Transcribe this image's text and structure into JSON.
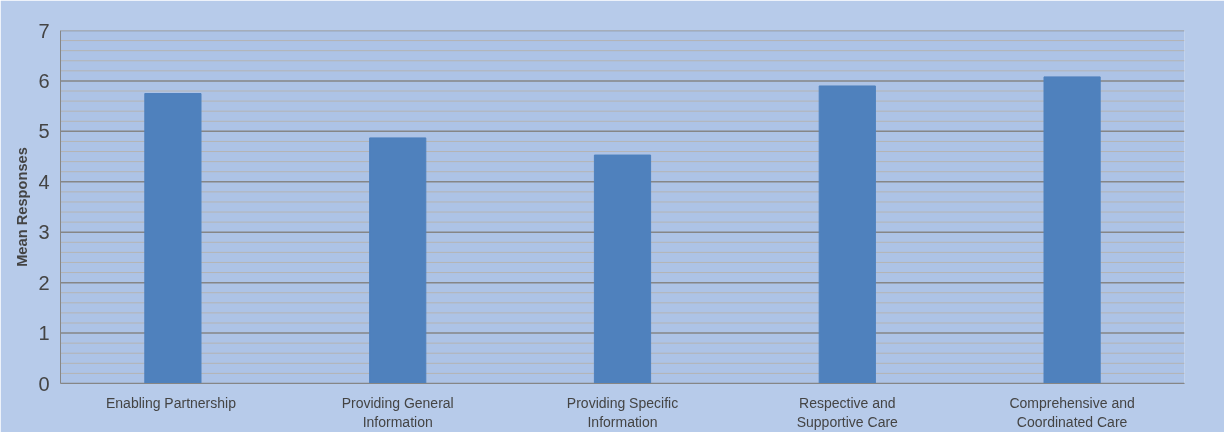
{
  "chart_data": {
    "type": "bar",
    "ylabel": "Mean Responses",
    "categories": [
      "Enabling  Partnership",
      "Providing General Information",
      "Providing Specific Information",
      "Respective and Supportive Care",
      "Comprehensive and Coordinated Care"
    ],
    "values": [
      5.75,
      4.87,
      4.53,
      5.9,
      6.08
    ],
    "color": "#4f81bd",
    "ylim": [
      0,
      7
    ],
    "yticks": [
      0,
      {
        "value": 0.2,
        "label": null
      },
      {
        "value": 0.4,
        "label": null
      },
      {
        "value": 0.6,
        "label": null
      },
      {
        "value": 0.8,
        "label": null
      },
      1,
      {
        "value": 1.2,
        "label": null
      },
      {
        "value": 1.4,
        "label": null
      },
      {
        "value": 1.6,
        "label": null
      },
      {
        "value": 1.8,
        "label": null
      },
      2,
      {
        "value": 2.2,
        "label": null
      },
      {
        "value": 2.4,
        "label": null
      },
      {
        "value": 2.6,
        "label": null
      },
      {
        "value": 2.8,
        "label": null
      },
      3,
      {
        "value": 3.2,
        "label": null
      },
      {
        "value": 3.4,
        "label": null
      },
      {
        "value": 3.6,
        "label": null
      },
      {
        "value": 3.8,
        "label": null
      },
      4,
      {
        "value": 4.2,
        "label": null
      },
      {
        "value": 4.4,
        "label": null
      },
      {
        "value": 4.6,
        "label": null
      },
      {
        "value": 4.8,
        "label": null
      },
      5,
      {
        "value": 5.2,
        "label": null
      },
      {
        "value": 5.4,
        "label": null
      },
      {
        "value": 5.6,
        "label": null
      },
      {
        "value": 5.8,
        "label": null
      },
      6,
      {
        "value": 6.2,
        "label": null
      },
      {
        "value": 6.4,
        "label": null
      },
      {
        "value": 6.6,
        "label": null
      },
      {
        "value": 6.8,
        "label": null
      },
      7
    ],
    "grid": "y"
  }
}
